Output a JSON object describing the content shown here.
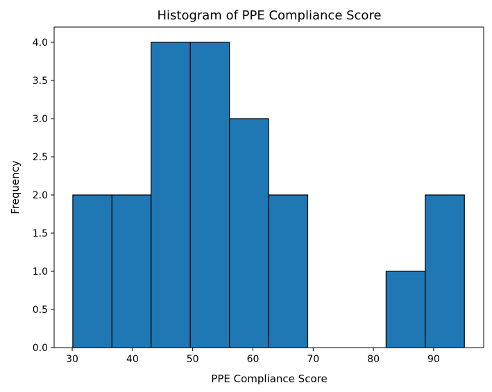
{
  "chart_data": {
    "type": "histogram",
    "title": "Histogram of PPE Compliance Score",
    "xlabel": "PPE Compliance Score",
    "ylabel": "Frequency",
    "bin_edges": [
      30.1,
      36.6,
      43.1,
      49.6,
      56.1,
      62.6,
      69.1,
      75.6,
      82.1,
      88.6,
      95.1
    ],
    "counts": [
      2,
      2,
      4,
      4,
      3,
      2,
      0,
      0,
      1,
      2
    ],
    "xlim": [
      27.0,
      98.3
    ],
    "ylim": [
      0,
      4.2
    ],
    "x_ticks": [
      30,
      40,
      50,
      60,
      70,
      80,
      90
    ],
    "x_tick_labels": [
      "30",
      "40",
      "50",
      "60",
      "70",
      "80",
      "90"
    ],
    "y_ticks": [
      0,
      0.5,
      1,
      1.5,
      2,
      2.5,
      3,
      3.5,
      4
    ],
    "y_tick_labels": [
      "0.0",
      "0.5",
      "1.0",
      "1.5",
      "2.0",
      "2.5",
      "3.0",
      "3.5",
      "4.0"
    ],
    "bar_color": "#1f77b4",
    "edge_color": "#000000",
    "grid": false
  }
}
